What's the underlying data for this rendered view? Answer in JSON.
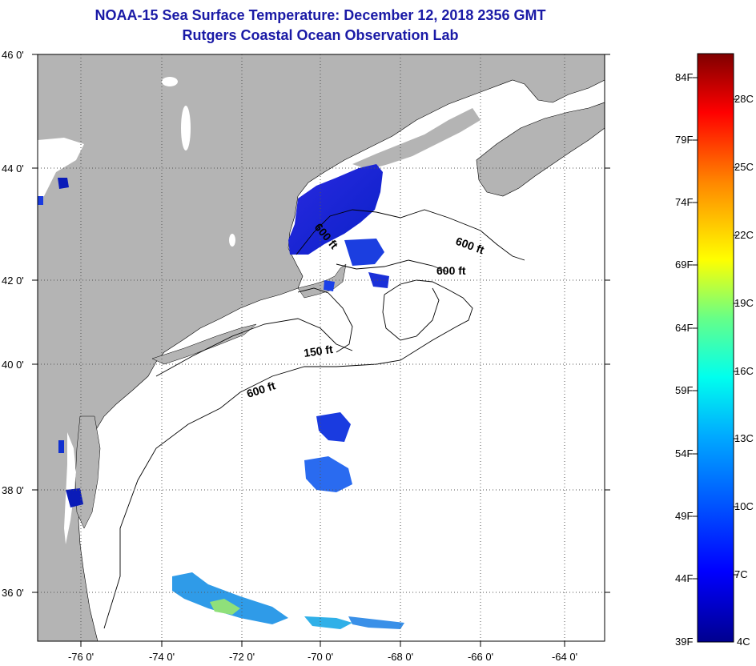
{
  "title": {
    "line1": "NOAA-15 Sea Surface Temperature:  December 12, 2018 2356 GMT",
    "line2": "Rutgers Coastal Ocean Observation Lab"
  },
  "map": {
    "lat_labels": [
      "46 0'",
      "44 0'",
      "42 0'",
      "40 0'",
      "38 0'",
      "36 0'"
    ],
    "lon_labels": [
      "-76 0'",
      "-74 0'",
      "-72 0'",
      "-70 0'",
      "-68 0'",
      "-66 0'",
      "-64 0'"
    ],
    "contour_labels": [
      "600 ft",
      "600 ft",
      "600 ft",
      "150 ft",
      "600 ft"
    ],
    "colors": {
      "land": "#b4b4b4",
      "ocean": "#ffffff",
      "grid": "#555555"
    }
  },
  "colorbar": {
    "fahrenheit_labels": [
      "84F",
      "79F",
      "74F",
      "69F",
      "64F",
      "59F",
      "54F",
      "49F",
      "44F",
      "39F"
    ],
    "celsius_labels": [
      "28C",
      "25C",
      "22C",
      "19C",
      "16C",
      "13C",
      "10C",
      "7C",
      "4C"
    ],
    "colors": [
      "#00008f",
      "#0000ff",
      "#007fff",
      "#00ffff",
      "#7fff7f",
      "#ffff00",
      "#ff7f00",
      "#ff0000",
      "#7f0000"
    ]
  }
}
